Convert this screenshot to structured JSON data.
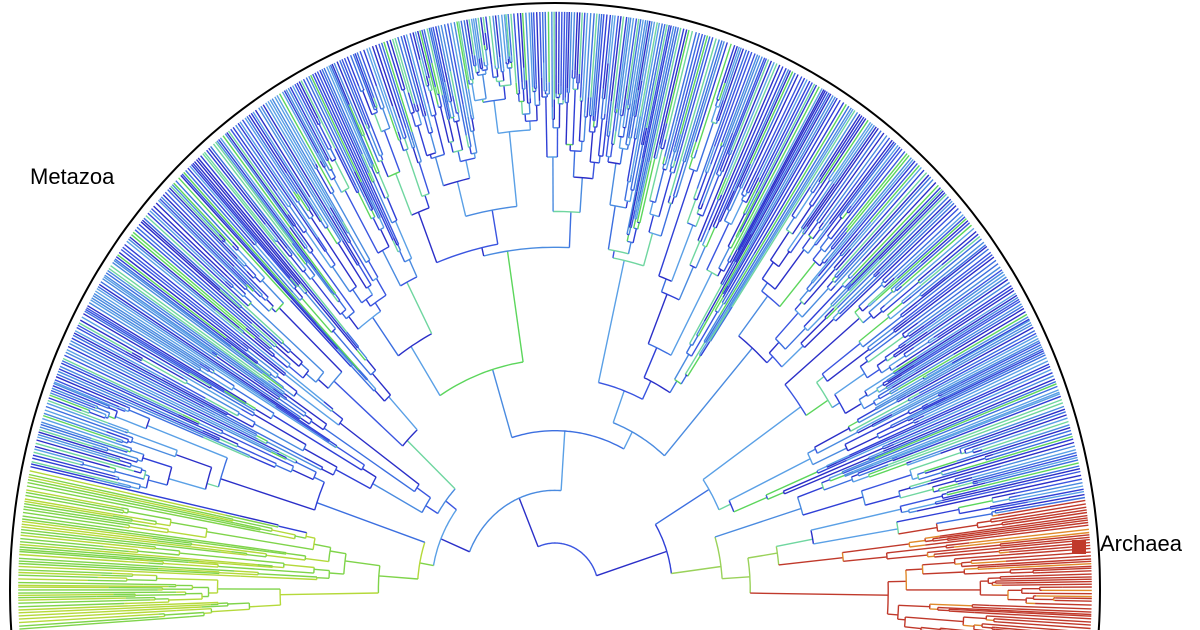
{
  "labels": {
    "metazoa": "Metazoa",
    "archaea": "Archaea"
  }
}
